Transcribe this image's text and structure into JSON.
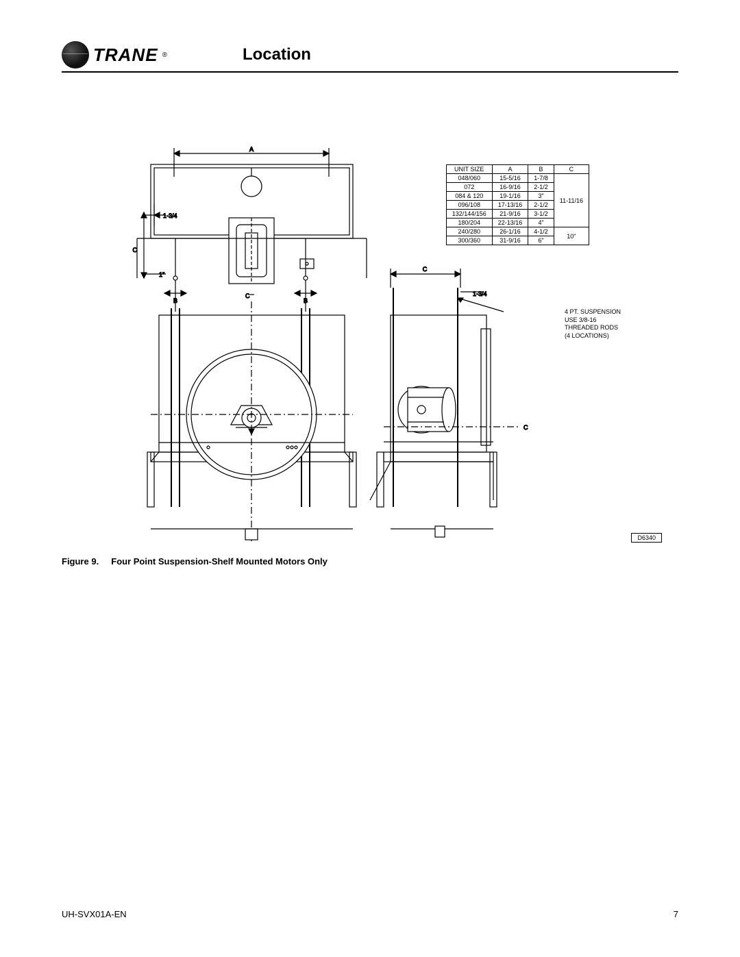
{
  "header": {
    "brand": "TRANE",
    "reg_mark": "®",
    "section_title": "Location"
  },
  "diagram": {
    "labels": {
      "A": "A",
      "B": "B",
      "C": "C",
      "CL": "C",
      "dim_1_34": "1-3/4",
      "dim_1": "1\"",
      "dim_c_side": "C",
      "side_1_34": "1-3/4"
    },
    "note": {
      "line1": "4 PT. SUSPENSION",
      "line2": "USE 3/8-16",
      "line3": "THREADED RODS",
      "line4": "(4 LOCATIONS)"
    },
    "drawing_number": "D6340",
    "table": {
      "columns": [
        "UNIT SIZE",
        "A",
        "B",
        "C"
      ],
      "rows": [
        {
          "size": "048/060",
          "a": "15-5/16",
          "b": "1-7/8",
          "c_group": 0
        },
        {
          "size": "072",
          "a": "16-9/16",
          "b": "2-1/2",
          "c_group": 0
        },
        {
          "size": "084 & 120",
          "a": "19-1/16",
          "b": "3\"",
          "c_group": 0
        },
        {
          "size": "096/108",
          "a": "17-13/16",
          "b": "2-1/2",
          "c_group": 0
        },
        {
          "size": "132/144/156",
          "a": "21-9/16",
          "b": "3-1/2",
          "c_group": 0
        },
        {
          "size": "180/204",
          "a": "22-13/16",
          "b": "4\"",
          "c_group": 0
        },
        {
          "size": "240/280",
          "a": "26-1/16",
          "b": "4-1/2",
          "c_group": 1
        },
        {
          "size": "300/360",
          "a": "31-9/16",
          "b": "6\"",
          "c_group": 1
        }
      ],
      "c_values": [
        "11-11/16",
        "10\""
      ]
    }
  },
  "caption": {
    "figure_num": "Figure 9.",
    "figure_title": "Four Point Suspension-Shelf Mounted Motors Only"
  },
  "footer": {
    "doc_id": "UH-SVX01A-EN",
    "page_num": "7"
  },
  "colors": {
    "stroke": "#000000",
    "background": "#ffffff",
    "fill_light": "#ffffff"
  }
}
